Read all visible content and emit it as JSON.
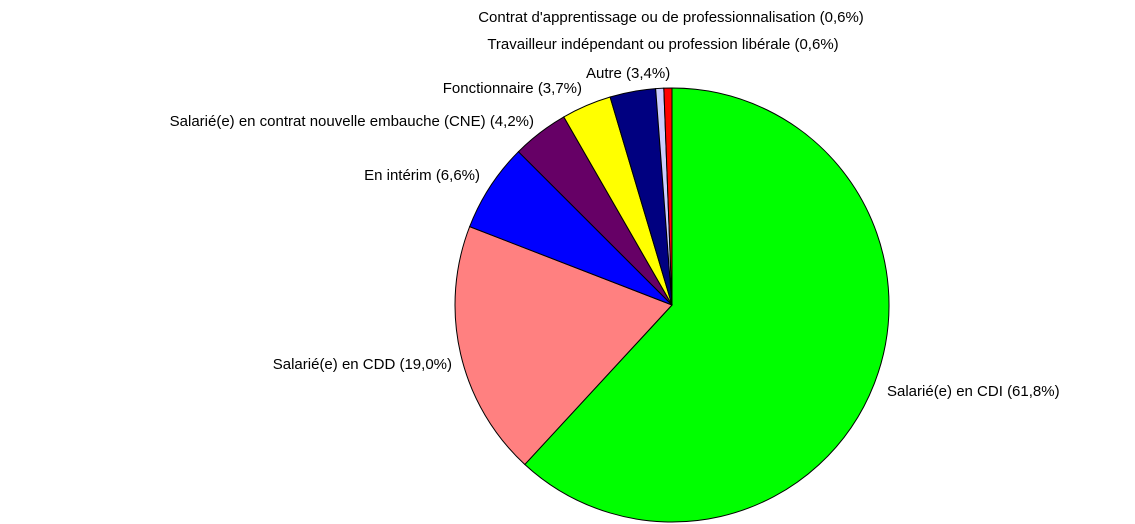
{
  "chart_data": {
    "type": "pie",
    "categories": [
      "Salarié(e) en CDI",
      "Salarié(e) en CDD",
      "En intérim",
      "Salarié(e) en contrat nouvelle embauche (CNE)",
      "Fonctionnaire",
      "Autre",
      "Travailleur indépendant ou profession libérale",
      "Contrat d'apprentissage ou de professionnalisation"
    ],
    "values": [
      61.8,
      19.0,
      6.6,
      4.2,
      3.7,
      3.4,
      0.6,
      0.6
    ],
    "value_labels": [
      "(61,8%)",
      "(19,0%)",
      "(6,6%)",
      "(4,2%)",
      "(3,7%)",
      "(3,4%)",
      "(0,6%)",
      "(0,6%)"
    ],
    "colors": [
      "#00ff00",
      "#ff8080",
      "#0000ff",
      "#660066",
      "#ffff00",
      "#000080",
      "#ccccff",
      "#ff0000"
    ]
  }
}
